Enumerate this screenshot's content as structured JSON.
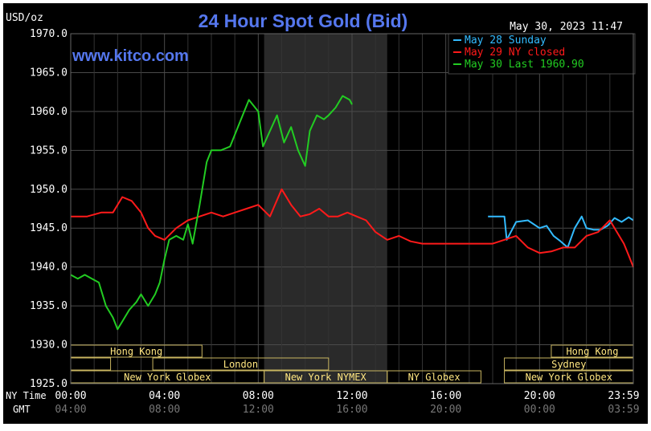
{
  "chart_data": {
    "type": "line",
    "title": "24 Hour Spot Gold (Bid)",
    "watermark": "www.kitco.com",
    "unit_label": "USD/oz",
    "timestamp": "May 30, 2023 11:47",
    "ylim": [
      1925,
      1970
    ],
    "yticks": [
      "1970.0",
      "1965.0",
      "1960.0",
      "1955.0",
      "1950.0",
      "1945.0",
      "1940.0",
      "1935.0",
      "1930.0",
      "1925.0"
    ],
    "xticks_ny": [
      "00:00",
      "04:00",
      "08:00",
      "12:00",
      "16:00",
      "20:00",
      "23:59"
    ],
    "xticks_gmt": [
      "04:00",
      "08:00",
      "12:00",
      "16:00",
      "20:00",
      "00:00",
      "03:59"
    ],
    "x_label_ny": "NY Time",
    "x_label_gmt": "GMT",
    "xlim_hours": [
      0,
      24
    ],
    "shaded_hours": [
      8.25,
      13.5
    ],
    "legend": [
      {
        "text": "May 28 Sunday",
        "color": "#33bbff"
      },
      {
        "text": "May 29 NY closed",
        "color": "#ff1a1a"
      },
      {
        "text": "May 30 Last 1960.90",
        "color": "#22cc22"
      }
    ],
    "markets": [
      {
        "label": "Hong Kong",
        "rows": [
          [
            0,
            5.6
          ],
          [
            20.5,
            24
          ]
        ]
      },
      {
        "label": "London",
        "rows": [
          [
            3.5,
            11
          ]
        ]
      },
      {
        "label": "New York Globex",
        "rows": [
          [
            0,
            8.25
          ],
          [
            18.5,
            24
          ]
        ]
      },
      {
        "label": "New York NYMEX",
        "rows": [
          [
            8.25,
            13.5
          ]
        ]
      },
      {
        "label": "NY Globex",
        "rows": [
          [
            13.5,
            17.5
          ]
        ]
      },
      {
        "label": "Sydney",
        "rows": [
          [
            18.5,
            24
          ]
        ]
      }
    ],
    "series": [
      {
        "name": "May 28 Sunday",
        "color": "#33bbff",
        "x": [
          17.8,
          18.5,
          18.6,
          19.0,
          19.5,
          20.0,
          20.3,
          20.6,
          20.9,
          21.2,
          21.5,
          21.8,
          22.0,
          22.3,
          22.6,
          22.9,
          23.2,
          23.5,
          23.8,
          24.0
        ],
        "y": [
          1946.5,
          1946.5,
          1943.5,
          1945.8,
          1946.0,
          1945.0,
          1945.3,
          1944.0,
          1943.3,
          1942.5,
          1945.0,
          1946.5,
          1945.0,
          1944.8,
          1944.8,
          1945.3,
          1946.3,
          1945.8,
          1946.4,
          1946.0
        ]
      },
      {
        "name": "May 29 NY closed",
        "color": "#ff1a1a",
        "x": [
          0,
          0.7,
          1.3,
          1.8,
          2.2,
          2.6,
          3.0,
          3.3,
          3.6,
          4.0,
          4.5,
          5.0,
          5.5,
          6.0,
          6.5,
          7.0,
          7.5,
          8.0,
          8.5,
          9.0,
          9.4,
          9.8,
          10.2,
          10.6,
          11.0,
          11.4,
          11.8,
          12.2,
          12.6,
          13.0,
          13.5,
          14.0,
          14.5,
          15.0,
          15.5,
          16.0,
          16.5,
          17.0,
          17.5,
          18.0,
          18.5,
          19.0,
          19.5,
          20.0,
          20.5,
          21.0,
          21.5,
          22.0,
          22.5,
          23.0,
          23.3,
          23.6,
          23.8,
          24.0
        ],
        "y": [
          1946.5,
          1946.5,
          1947.0,
          1947.0,
          1949.0,
          1948.5,
          1947.0,
          1945.0,
          1944.0,
          1943.5,
          1945.0,
          1946.0,
          1946.5,
          1947.0,
          1946.5,
          1947.0,
          1947.5,
          1948.0,
          1946.5,
          1950.0,
          1948.0,
          1946.5,
          1946.8,
          1947.5,
          1946.5,
          1946.5,
          1947.0,
          1946.5,
          1946.0,
          1944.5,
          1943.5,
          1944.0,
          1943.3,
          1943.0,
          1943.0,
          1943.0,
          1943.0,
          1943.0,
          1943.0,
          1943.0,
          1943.5,
          1944.0,
          1942.5,
          1941.8,
          1942.0,
          1942.5,
          1942.5,
          1944.0,
          1944.5,
          1946.0,
          1944.5,
          1943.0,
          1941.5,
          1940.0
        ]
      },
      {
        "name": "May 30 Last 1960.90",
        "color": "#22cc22",
        "x": [
          0,
          0.3,
          0.6,
          0.9,
          1.2,
          1.5,
          1.8,
          2.0,
          2.2,
          2.5,
          2.8,
          3.0,
          3.3,
          3.6,
          3.8,
          4.0,
          4.2,
          4.5,
          4.8,
          5.0,
          5.2,
          5.5,
          5.8,
          6.0,
          6.4,
          6.8,
          7.2,
          7.6,
          8.0,
          8.2,
          8.5,
          8.8,
          9.1,
          9.4,
          9.7,
          10.0,
          10.2,
          10.5,
          10.8,
          11.0,
          11.3,
          11.6,
          11.9,
          12.0
        ],
        "y": [
          1939.0,
          1938.5,
          1939.0,
          1938.5,
          1938.0,
          1935.0,
          1933.5,
          1932.0,
          1933.0,
          1934.5,
          1935.5,
          1936.5,
          1935.0,
          1936.5,
          1938.0,
          1941.0,
          1943.5,
          1944.0,
          1943.5,
          1945.5,
          1943.0,
          1948.0,
          1953.5,
          1955.0,
          1955.0,
          1955.5,
          1958.5,
          1961.5,
          1960.0,
          1955.5,
          1957.5,
          1959.5,
          1956.0,
          1958.0,
          1955.0,
          1953.0,
          1957.5,
          1959.5,
          1959.0,
          1959.5,
          1960.5,
          1962.0,
          1961.5,
          1960.9
        ]
      }
    ]
  }
}
